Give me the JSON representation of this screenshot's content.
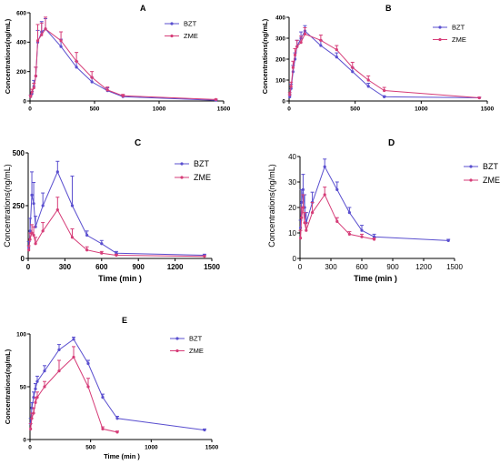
{
  "colors": {
    "BZT": "#5a4fcf",
    "ZME": "#d63d78"
  },
  "chart_data": [
    {
      "id": "A",
      "type": "line",
      "panel_label": "A",
      "title": "",
      "xlabel": "",
      "ylabel": "Concentrations(ng/mL)",
      "xlim": [
        0,
        1500
      ],
      "ylim": [
        0,
        600
      ],
      "xticks": [
        0,
        500,
        1000,
        1500
      ],
      "yticks": [
        0,
        200,
        400,
        600
      ],
      "legend": "top-right",
      "series": [
        {
          "name": "BZT",
          "x": [
            5,
            15,
            30,
            45,
            60,
            90,
            120,
            240,
            360,
            480,
            600,
            720,
            1440
          ],
          "y": [
            30,
            50,
            100,
            170,
            400,
            470,
            490,
            370,
            230,
            130,
            70,
            30,
            5
          ],
          "err": [
            10,
            15,
            40,
            60,
            80,
            70,
            70,
            50,
            40,
            30,
            20,
            10,
            3
          ]
        },
        {
          "name": "ZME",
          "x": [
            5,
            15,
            30,
            45,
            60,
            90,
            120,
            240,
            360,
            480,
            600,
            720,
            1440
          ],
          "y": [
            30,
            60,
            90,
            170,
            410,
            450,
            490,
            410,
            270,
            160,
            75,
            35,
            10
          ],
          "err": [
            10,
            20,
            30,
            60,
            110,
            80,
            80,
            60,
            60,
            40,
            20,
            10,
            3
          ]
        }
      ]
    },
    {
      "id": "B",
      "type": "line",
      "panel_label": "B",
      "title": "",
      "xlabel": "",
      "ylabel": "Concentrations(ng/mL)",
      "xlim": [
        0,
        1500
      ],
      "ylim": [
        0,
        400
      ],
      "xticks": [
        0,
        500,
        1000,
        1500
      ],
      "yticks": [
        0,
        100,
        200,
        300,
        400
      ],
      "legend": "top-right",
      "series": [
        {
          "name": "BZT",
          "x": [
            5,
            15,
            30,
            45,
            60,
            90,
            120,
            240,
            360,
            480,
            600,
            720,
            1440
          ],
          "y": [
            20,
            60,
            140,
            200,
            260,
            300,
            335,
            265,
            210,
            140,
            70,
            20,
            15
          ],
          "err": [
            10,
            20,
            30,
            30,
            30,
            30,
            25,
            25,
            20,
            20,
            15,
            5,
            3
          ]
        },
        {
          "name": "ZME",
          "x": [
            5,
            15,
            30,
            45,
            60,
            90,
            120,
            240,
            360,
            480,
            600,
            720,
            1440
          ],
          "y": [
            30,
            70,
            160,
            220,
            260,
            280,
            320,
            290,
            245,
            160,
            100,
            50,
            15
          ],
          "err": [
            10,
            20,
            30,
            30,
            30,
            30,
            30,
            25,
            20,
            25,
            20,
            15,
            3
          ]
        }
      ]
    },
    {
      "id": "C",
      "type": "line",
      "panel_label": "C",
      "title": "",
      "xlabel": "Time (min )",
      "ylabel": "Concentrations(ng/mL)",
      "xlim": [
        0,
        1500
      ],
      "ylim": [
        0,
        500
      ],
      "xticks": [
        0,
        300,
        600,
        900,
        1200,
        1500
      ],
      "yticks": [
        0,
        250,
        500
      ],
      "legend": "top-right",
      "series": [
        {
          "name": "BZT",
          "x": [
            5,
            15,
            30,
            45,
            60,
            120,
            240,
            360,
            480,
            600,
            720,
            1440
          ],
          "y": [
            50,
            130,
            300,
            260,
            150,
            250,
            410,
            250,
            110,
            70,
            25,
            15
          ],
          "err": [
            30,
            60,
            110,
            100,
            50,
            60,
            50,
            140,
            20,
            15,
            8,
            5
          ]
        },
        {
          "name": "ZME",
          "x": [
            5,
            15,
            30,
            45,
            60,
            120,
            240,
            360,
            480,
            600,
            720,
            1440
          ],
          "y": [
            40,
            90,
            120,
            110,
            70,
            130,
            230,
            100,
            40,
            25,
            15,
            10
          ],
          "err": [
            20,
            30,
            40,
            40,
            30,
            40,
            60,
            40,
            15,
            8,
            5,
            3
          ]
        }
      ]
    },
    {
      "id": "D",
      "type": "line",
      "panel_label": "D",
      "title": "",
      "xlabel": "Time (min )",
      "ylabel": "Concentrations(ng/mL)",
      "xlim": [
        0,
        1500
      ],
      "ylim": [
        0,
        40
      ],
      "xticks": [
        0,
        300,
        600,
        900,
        1200,
        1500
      ],
      "yticks": [
        0,
        10,
        20,
        30,
        40
      ],
      "legend": "top-right",
      "series": [
        {
          "name": "BZT",
          "x": [
            5,
            15,
            30,
            45,
            60,
            120,
            240,
            360,
            480,
            600,
            720,
            1440
          ],
          "y": [
            12,
            22,
            27,
            20,
            14,
            22,
            36,
            27,
            18,
            11,
            8.5,
            7
          ],
          "err": [
            3,
            5,
            6,
            5,
            4,
            4,
            3,
            3,
            2,
            2,
            1,
            0.5
          ]
        },
        {
          "name": "ZME",
          "x": [
            5,
            15,
            30,
            45,
            60,
            120,
            240,
            360,
            480,
            600,
            720
          ],
          "y": [
            8,
            16,
            20,
            14,
            11,
            18,
            25,
            14.5,
            9.5,
            8.5,
            7.5
          ],
          "err": [
            3,
            4,
            5,
            4,
            3,
            4,
            3,
            1.5,
            1,
            1,
            0.5
          ]
        }
      ]
    },
    {
      "id": "E",
      "type": "line",
      "panel_label": "E",
      "title": "",
      "xlabel": "Time (min )",
      "ylabel": "Concentrations(ng/mL)",
      "xlim": [
        0,
        1500
      ],
      "ylim": [
        0,
        100
      ],
      "xticks": [
        0,
        500,
        1000,
        1500
      ],
      "yticks": [
        0,
        50,
        100
      ],
      "legend": "top-right",
      "series": [
        {
          "name": "BZT",
          "x": [
            5,
            15,
            30,
            45,
            60,
            120,
            240,
            360,
            480,
            600,
            720,
            1440
          ],
          "y": [
            15,
            30,
            40,
            48,
            55,
            65,
            85,
            95,
            72,
            40,
            20,
            9
          ],
          "err": [
            5,
            5,
            5,
            5,
            5,
            5,
            5,
            2,
            3,
            3,
            2,
            1
          ]
        },
        {
          "name": "ZME",
          "x": [
            5,
            15,
            30,
            45,
            60,
            120,
            240,
            360,
            480,
            600,
            720
          ],
          "y": [
            10,
            20,
            25,
            35,
            40,
            50,
            65,
            78,
            50,
            10,
            7
          ],
          "err": [
            5,
            5,
            5,
            5,
            5,
            5,
            10,
            10,
            8,
            2,
            1
          ]
        }
      ]
    }
  ]
}
